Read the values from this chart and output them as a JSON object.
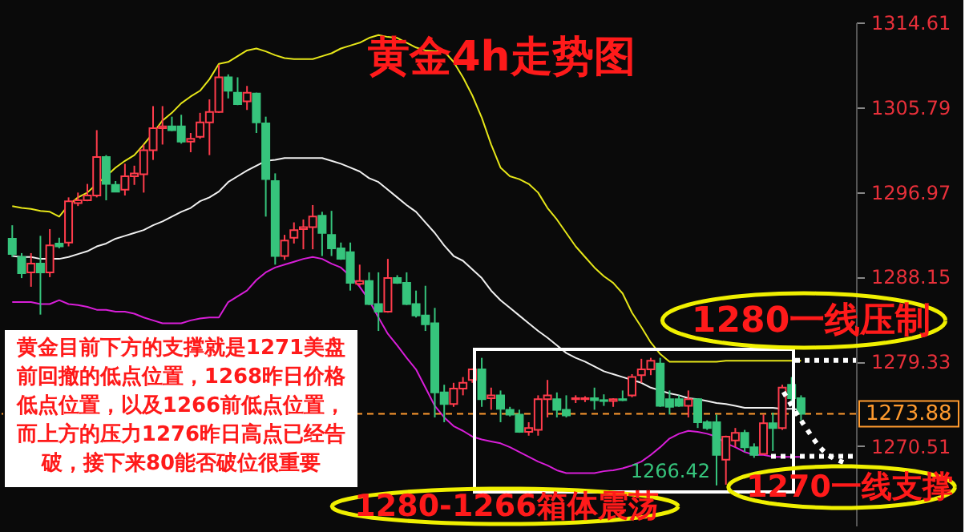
{
  "chart_data": {
    "type": "candlestick",
    "title": "黄金4h走势图",
    "categories": [
      null,
      null,
      null,
      null,
      null,
      null,
      null,
      null,
      null,
      null,
      null,
      null,
      null,
      null,
      null,
      null,
      null,
      null,
      null,
      null,
      null,
      null,
      null,
      null,
      null,
      null,
      null,
      null,
      null,
      null,
      null,
      null,
      null,
      null,
      null,
      null,
      null,
      null,
      null,
      null,
      null,
      null,
      null,
      null,
      null,
      null,
      null,
      null,
      null,
      null,
      null,
      null,
      null,
      null,
      null,
      null,
      null,
      null,
      null,
      null,
      null,
      null,
      null,
      null,
      null,
      null,
      null,
      null,
      null,
      null,
      null,
      null,
      null,
      null,
      null,
      null,
      null,
      null,
      null,
      null,
      null,
      null,
      null,
      null,
      null
    ],
    "ohlc": [
      [
        1292.1,
        1293.5,
        1290.2,
        1290.5
      ],
      [
        1290.2,
        1290.6,
        1288.0,
        1288.5
      ],
      [
        1288.6,
        1290.6,
        1287.1,
        1289.5
      ],
      [
        1289.5,
        1292.4,
        1284.2,
        1288.6
      ],
      [
        1288.6,
        1293.1,
        1288.1,
        1291.4
      ],
      [
        1291.6,
        1292.2,
        1291.1,
        1291.3
      ],
      [
        1291.7,
        1296.4,
        1291.3,
        1296.0
      ],
      [
        1295.8,
        1296.9,
        1295.5,
        1296.1
      ],
      [
        1296.1,
        1297.8,
        1296.0,
        1296.6
      ],
      [
        1296.6,
        1303.4,
        1296.4,
        1300.6
      ],
      [
        1300.6,
        1300.8,
        1296.1,
        1297.8
      ],
      [
        1297.7,
        1298.1,
        1297.0,
        1297.0
      ],
      [
        1297.2,
        1299.9,
        1296.6,
        1298.6
      ],
      [
        1298.6,
        1299.7,
        1297.7,
        1298.9
      ],
      [
        1298.8,
        1301.9,
        1296.9,
        1301.3
      ],
      [
        1301.3,
        1305.9,
        1300.3,
        1303.6
      ],
      [
        1303.6,
        1305.9,
        1301.9,
        1303.8
      ],
      [
        1303.8,
        1304.8,
        1303.3,
        1303.4
      ],
      [
        1303.8,
        1305.0,
        1302.0,
        1302.2
      ],
      [
        1302.2,
        1303.1,
        1301.1,
        1302.5
      ],
      [
        1302.7,
        1305.2,
        1302.5,
        1304.2
      ],
      [
        1304.2,
        1306.6,
        1300.8,
        1305.3
      ],
      [
        1305.3,
        1310.2,
        1305.2,
        1308.9
      ],
      [
        1308.9,
        1309.2,
        1306.7,
        1307.5
      ],
      [
        1307.3,
        1308.9,
        1306.0,
        1306.1
      ],
      [
        1306.4,
        1308.0,
        1305.5,
        1307.3
      ],
      [
        1307.2,
        1307.3,
        1303.1,
        1304.2
      ],
      [
        1304.1,
        1304.8,
        1294.4,
        1298.3
      ],
      [
        1298.1,
        1298.9,
        1289.4,
        1290.3
      ],
      [
        1290.3,
        1292.5,
        1289.9,
        1291.9
      ],
      [
        1292.2,
        1293.8,
        1291.6,
        1293.0
      ],
      [
        1293.1,
        1294.1,
        1291.0,
        1293.3
      ],
      [
        1293.3,
        1295.6,
        1291.0,
        1294.4
      ],
      [
        1294.5,
        1294.9,
        1290.3,
        1292.7
      ],
      [
        1292.5,
        1295.0,
        1290.3,
        1291.1
      ],
      [
        1291.1,
        1291.7,
        1289.9,
        1290.0
      ],
      [
        1290.7,
        1291.7,
        1286.7,
        1287.5
      ],
      [
        1287.4,
        1289.4,
        1287.2,
        1287.7
      ],
      [
        1287.7,
        1288.6,
        1285.2,
        1285.3
      ],
      [
        1285.3,
        1288.6,
        1282.5,
        1284.5
      ],
      [
        1284.5,
        1290.0,
        1284.4,
        1288.0
      ],
      [
        1288.0,
        1288.3,
        1287.4,
        1287.5
      ],
      [
        1287.5,
        1288.6,
        1285.2,
        1285.3
      ],
      [
        1285.3,
        1286.7,
        1283.9,
        1284.1
      ],
      [
        1284.1,
        1287.2,
        1282.5,
        1283.2
      ],
      [
        1283.3,
        1284.9,
        1273.5,
        1276.1
      ],
      [
        1276.1,
        1276.9,
        1273.0,
        1274.9
      ],
      [
        1274.9,
        1277.1,
        1274.6,
        1276.5
      ],
      [
        1276.5,
        1277.7,
        1275.8,
        1277.1
      ],
      [
        1277.4,
        1278.6,
        1277.1,
        1278.5
      ],
      [
        1278.5,
        1279.7,
        1274.6,
        1275.4
      ],
      [
        1275.5,
        1276.6,
        1274.3,
        1275.8
      ],
      [
        1275.8,
        1276.3,
        1273.0,
        1274.4
      ],
      [
        1274.3,
        1274.6,
        1273.6,
        1273.8
      ],
      [
        1273.8,
        1274.3,
        1271.9,
        1272.0
      ],
      [
        1272.0,
        1273.0,
        1271.6,
        1272.4
      ],
      [
        1272.2,
        1275.8,
        1271.6,
        1275.4
      ],
      [
        1275.4,
        1277.4,
        1273.5,
        1275.8
      ],
      [
        1275.4,
        1276.1,
        1273.5,
        1274.3
      ],
      [
        1274.3,
        1275.8,
        1273.5,
        1273.7
      ],
      [
        1275.4,
        1275.8,
        1275.0,
        1275.5
      ],
      [
        1275.4,
        1275.7,
        1275.1,
        1275.5
      ],
      [
        1275.5,
        1276.6,
        1274.3,
        1275.3
      ],
      [
        1275.3,
        1275.9,
        1274.7,
        1275.2
      ],
      [
        1275.2,
        1275.5,
        1274.6,
        1275.4
      ],
      [
        1275.4,
        1276.3,
        1275.2,
        1275.3
      ],
      [
        1275.8,
        1278.0,
        1275.6,
        1277.7
      ],
      [
        1277.9,
        1279.6,
        1277.1,
        1278.5
      ],
      [
        1278.5,
        1279.7,
        1277.9,
        1279.4
      ],
      [
        1279.1,
        1279.7,
        1274.6,
        1274.7
      ],
      [
        1275.4,
        1276.3,
        1273.8,
        1274.6
      ],
      [
        1275.4,
        1275.8,
        1274.6,
        1274.7
      ],
      [
        1274.7,
        1276.3,
        1273.5,
        1275.4
      ],
      [
        1275.4,
        1275.5,
        1272.4,
        1273.0
      ],
      [
        1273.0,
        1273.2,
        1272.2,
        1272.4
      ],
      [
        1273.0,
        1273.8,
        1266.42,
        1269.6
      ],
      [
        1269.1,
        1271.6,
        1266.5,
        1271.5
      ],
      [
        1271.1,
        1272.4,
        1270.4,
        1271.9
      ],
      [
        1271.9,
        1272.2,
        1269.9,
        1270.4
      ],
      [
        1270.4,
        1270.8,
        1269.3,
        1269.6
      ],
      [
        1269.7,
        1273.8,
        1269.6,
        1272.9
      ],
      [
        1272.9,
        1274.0,
        1270.0,
        1272.4
      ],
      [
        1272.4,
        1276.9,
        1272.2,
        1276.6
      ],
      [
        1276.9,
        1277.7,
        1275.0,
        1275.5
      ],
      [
        1275.5,
        1275.8,
        1273.2,
        1273.88
      ]
    ],
    "colors": [
      "#36c47c",
      "#36c47c",
      "#ff3c4c",
      "#36c47c",
      "#ff3c4c",
      "#36c47c",
      "#ff3c4c",
      "#ff3c4c",
      "#ff3c4c",
      "#ff3c4c",
      "#36c47c",
      "#36c47c",
      "#ff3c4c",
      "#ff3c4c",
      "#ff3c4c",
      "#ff3c4c",
      "#ff3c4c",
      "#36c47c",
      "#36c47c",
      "#ff3c4c",
      "#ff3c4c",
      "#ff3c4c",
      "#ff3c4c",
      "#36c47c",
      "#36c47c",
      "#ff3c4c",
      "#36c47c",
      "#36c47c",
      "#36c47c",
      "#ff3c4c",
      "#ff3c4c",
      "#ff3c4c",
      "#ff3c4c",
      "#36c47c",
      "#36c47c",
      "#36c47c",
      "#36c47c",
      "#ff3c4c",
      "#36c47c",
      "#36c47c",
      "#ff3c4c",
      "#36c47c",
      "#36c47c",
      "#36c47c",
      "#36c47c",
      "#36c47c",
      "#36c47c",
      "#ff3c4c",
      "#ff3c4c",
      "#ff3c4c",
      "#36c47c",
      "#ff3c4c",
      "#36c47c",
      "#36c47c",
      "#36c47c",
      "#ff3c4c",
      "#ff3c4c",
      "#ff3c4c",
      "#36c47c",
      "#36c47c",
      "#ff3c4c",
      "#ff3c4c",
      "#36c47c",
      "#36c47c",
      "#ff3c4c",
      "#36c47c",
      "#ff3c4c",
      "#ff3c4c",
      "#ff3c4c",
      "#36c47c",
      "#36c47c",
      "#36c47c",
      "#ff3c4c",
      "#36c47c",
      "#36c47c",
      "#36c47c",
      "#ff3c4c",
      "#ff3c4c",
      "#36c47c",
      "#36c47c",
      "#ff3c4c",
      "#36c47c",
      "#ff3c4c",
      "#36c47c",
      "#36c47c"
    ],
    "series": [
      {
        "type": "line",
        "color": "#e6e619",
        "values": [
          1295.5,
          1295.3,
          1295.2,
          1295.0,
          1294.9,
          1294.4,
          1295.6,
          1296.4,
          1296.9,
          1297.8,
          1298.6,
          1299.5,
          1300.2,
          1300.8,
          1301.9,
          1303.1,
          1304.4,
          1305.2,
          1306.2,
          1306.9,
          1307.5,
          1308.7,
          1310.3,
          1310.5,
          1311.1,
          1311.7,
          1311.9,
          1311.6,
          1311.2,
          1310.9,
          1310.8,
          1310.8,
          1310.8,
          1311.1,
          1311.4,
          1311.9,
          1312.2,
          1312.5,
          1313.0,
          1313.3,
          1313.1,
          1313.0,
          1312.5,
          1312.0,
          1311.7,
          1311.6,
          1311.6,
          1310.5,
          1308.9,
          1307.0,
          1304.7,
          1301.9,
          1299.5,
          1298.6,
          1298.3,
          1297.8,
          1296.9,
          1295.3,
          1294.1,
          1292.7,
          1291.3,
          1290.2,
          1289.1,
          1288.2,
          1287.5,
          1286.4,
          1284.4,
          1282.9,
          1281.3,
          1280.1,
          1279.3,
          1279.3,
          1279.3,
          1279.3,
          1279.3,
          1279.3,
          1279.4,
          1279.4,
          1279.4,
          1279.4,
          1279.4,
          1279.4,
          1279.4,
          1279.4,
          1279.4
        ]
      },
      {
        "type": "line",
        "color": "#f0f0f0",
        "values": [
          1290.3,
          1290.2,
          1290.2,
          1290.0,
          1290.0,
          1290.0,
          1290.2,
          1290.5,
          1290.8,
          1291.3,
          1291.6,
          1292.1,
          1292.4,
          1292.7,
          1293.0,
          1293.5,
          1293.9,
          1294.4,
          1294.9,
          1295.3,
          1296.0,
          1296.4,
          1297.0,
          1298.0,
          1298.6,
          1299.2,
          1299.7,
          1300.2,
          1300.3,
          1300.5,
          1300.5,
          1300.5,
          1300.5,
          1300.5,
          1300.2,
          1299.9,
          1299.5,
          1299.1,
          1298.4,
          1298.0,
          1297.2,
          1296.4,
          1295.6,
          1294.9,
          1293.8,
          1292.7,
          1291.4,
          1290.3,
          1289.8,
          1288.9,
          1288.0,
          1286.7,
          1285.7,
          1284.9,
          1284.1,
          1283.3,
          1282.5,
          1281.8,
          1281.0,
          1280.2,
          1279.7,
          1279.3,
          1278.8,
          1278.3,
          1278.0,
          1277.7,
          1277.4,
          1277.1,
          1276.6,
          1276.3,
          1276.0,
          1275.8,
          1275.5,
          1275.4,
          1275.2,
          1275.0,
          1274.9,
          1274.7,
          1274.5,
          1274.5,
          1274.5,
          1274.5,
          1274.4,
          1274.4,
          1274.3
        ]
      },
      {
        "type": "line",
        "color": "#d81ed8",
        "values": [
          1285.5,
          1285.5,
          1285.5,
          1285.3,
          1285.3,
          1285.7,
          1285.3,
          1285.2,
          1285.0,
          1284.7,
          1284.7,
          1284.5,
          1284.5,
          1284.3,
          1283.9,
          1283.6,
          1283.3,
          1283.3,
          1283.3,
          1283.6,
          1283.8,
          1283.9,
          1283.9,
          1285.5,
          1286.1,
          1286.7,
          1287.8,
          1288.6,
          1289.1,
          1289.4,
          1289.7,
          1290.0,
          1290.2,
          1290.0,
          1289.5,
          1289.1,
          1288.2,
          1287.1,
          1285.7,
          1283.9,
          1282.2,
          1281.0,
          1279.7,
          1278.5,
          1276.6,
          1274.7,
          1273.5,
          1272.6,
          1272.1,
          1271.5,
          1271.2,
          1271.0,
          1270.8,
          1270.4,
          1269.9,
          1269.4,
          1268.9,
          1268.5,
          1268.0,
          1267.7,
          1267.7,
          1267.7,
          1267.7,
          1267.9,
          1268.0,
          1268.2,
          1268.5,
          1268.9,
          1269.6,
          1270.4,
          1271.3,
          1271.8,
          1272.1,
          1272.0,
          1271.8,
          1271.5,
          1270.8,
          1270.4,
          1269.9,
          1269.6,
          1269.6,
          1269.4,
          1269.4,
          1269.4,
          1269.4
        ]
      }
    ],
    "ylim": [
      1262.24,
      1314.61
    ],
    "yticks": [
      1270.51,
      1279.33,
      1288.15,
      1296.97,
      1305.79,
      1314.61
    ],
    "ref_lines": [
      {
        "axis": "y",
        "value": 1273.88,
        "label": "1273.88",
        "color": "#ff9a2e",
        "line_style": "dashed"
      }
    ],
    "annotations": [
      "黄金目前下方的支撑就是1271美盘前回撤的低点位置，1268昨日价格低点位置，以及1266前低点位置，而上方的压力1276昨日高点已经告破，接下来80能否破位很重要",
      "1280一线压制",
      "1270一线支撑",
      "1280-1266箱体震荡",
      "1266.42"
    ]
  }
}
